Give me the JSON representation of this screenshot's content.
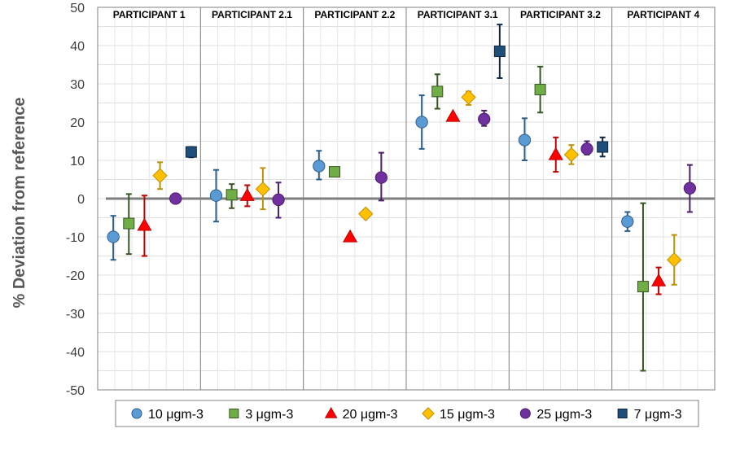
{
  "chart_data": {
    "type": "scatter",
    "title": "",
    "xlabel": "",
    "ylabel": "% Deviation from reference",
    "ylim": [
      -50,
      50
    ],
    "y_ticks": [
      50,
      40,
      30,
      20,
      10,
      0,
      -10,
      -20,
      -30,
      -40,
      -50
    ],
    "grid": true,
    "error_bars": true,
    "reference_line": 0,
    "legend_position": "bottom",
    "panels": [
      "PARTICIPANT 1",
      "PARTICIPANT 2.1",
      "PARTICIPANT 2.2",
      "PARTICIPANT 3.1",
      "PARTICIPANT 3.2",
      "PARTICIPANT 4"
    ],
    "series": [
      {
        "name": "10 μgm-3",
        "marker": "circle",
        "color": "#5b9bd5",
        "edge": "#2e5f8a",
        "bar_color": "#2e5f8a",
        "points": [
          {
            "panel": 0,
            "y": -10,
            "low": -16,
            "high": -4.5
          },
          {
            "panel": 1,
            "y": 0.8,
            "low": -6,
            "high": 7.5
          },
          {
            "panel": 2,
            "y": 8.5,
            "low": 5,
            "high": 12.5
          },
          {
            "panel": 3,
            "y": 20,
            "low": 13,
            "high": 27
          },
          {
            "panel": 4,
            "y": 15.3,
            "low": 10,
            "high": 21
          },
          {
            "panel": 5,
            "y": -6,
            "low": -8.5,
            "high": -3.5
          }
        ]
      },
      {
        "name": "3 μgm-3",
        "marker": "square",
        "color": "#70ad47",
        "edge": "#375623",
        "bar_color": "#375623",
        "points": [
          {
            "panel": 0,
            "y": -6.5,
            "low": -14.5,
            "high": 1.2
          },
          {
            "panel": 1,
            "y": 1,
            "low": -2.5,
            "high": 3.8
          },
          {
            "panel": 2,
            "y": 7,
            "low": null,
            "high": null
          },
          {
            "panel": 3,
            "y": 28,
            "low": 23.5,
            "high": 32.5
          },
          {
            "panel": 4,
            "y": 28.5,
            "low": 22.5,
            "high": 34.5
          },
          {
            "panel": 5,
            "y": -23,
            "low": -45,
            "high": -1.2
          }
        ]
      },
      {
        "name": "20 μgm-3",
        "marker": "triangle",
        "color": "#ff0000",
        "edge": "#c00000",
        "bar_color": "#c00000",
        "points": [
          {
            "panel": 0,
            "y": -7,
            "low": -15,
            "high": 0.8
          },
          {
            "panel": 1,
            "y": 0.8,
            "low": -2,
            "high": 3.5
          },
          {
            "panel": 2,
            "y": -10,
            "low": null,
            "high": null
          },
          {
            "panel": 3,
            "y": 21.5,
            "low": null,
            "high": null
          },
          {
            "panel": 4,
            "y": 11.5,
            "low": 7,
            "high": 16
          },
          {
            "panel": 5,
            "y": -21.5,
            "low": -25,
            "high": -18
          }
        ]
      },
      {
        "name": "15 μgm-3",
        "marker": "diamond",
        "color": "#ffc000",
        "edge": "#bf9000",
        "bar_color": "#bf9000",
        "points": [
          {
            "panel": 0,
            "y": 6,
            "low": 2.5,
            "high": 9.5
          },
          {
            "panel": 1,
            "y": 2.5,
            "low": -2.8,
            "high": 8
          },
          {
            "panel": 2,
            "y": -4,
            "low": null,
            "high": null
          },
          {
            "panel": 3,
            "y": 26.5,
            "low": 24.5,
            "high": 28
          },
          {
            "panel": 4,
            "y": 11.5,
            "low": 9,
            "high": 14
          },
          {
            "panel": 5,
            "y": -16,
            "low": -22.5,
            "high": -9.5
          }
        ]
      },
      {
        "name": "25 μgm-3",
        "marker": "circle",
        "color": "#7030a0",
        "edge": "#4b1f6b",
        "bar_color": "#4b1f6b",
        "points": [
          {
            "panel": 0,
            "y": 0,
            "low": -1,
            "high": 1
          },
          {
            "panel": 1,
            "y": -0.3,
            "low": -5,
            "high": 4.2
          },
          {
            "panel": 2,
            "y": 5.5,
            "low": -0.5,
            "high": 12
          },
          {
            "panel": 3,
            "y": 20.8,
            "low": 19,
            "high": 23
          },
          {
            "panel": 4,
            "y": 13,
            "low": 11.5,
            "high": 15
          },
          {
            "panel": 5,
            "y": 2.7,
            "low": -3.5,
            "high": 8.8
          }
        ]
      },
      {
        "name": "7 μgm-3",
        "marker": "square",
        "color": "#1f4e79",
        "edge": "#0b2744",
        "bar_color": "#0b2744",
        "points": [
          {
            "panel": 0,
            "y": 12.2,
            "low": 10.8,
            "high": 13.5
          },
          {
            "panel": 3,
            "y": 38.5,
            "low": 31.5,
            "high": 45.5
          },
          {
            "panel": 4,
            "y": 13.5,
            "low": 11,
            "high": 16
          }
        ]
      }
    ]
  }
}
